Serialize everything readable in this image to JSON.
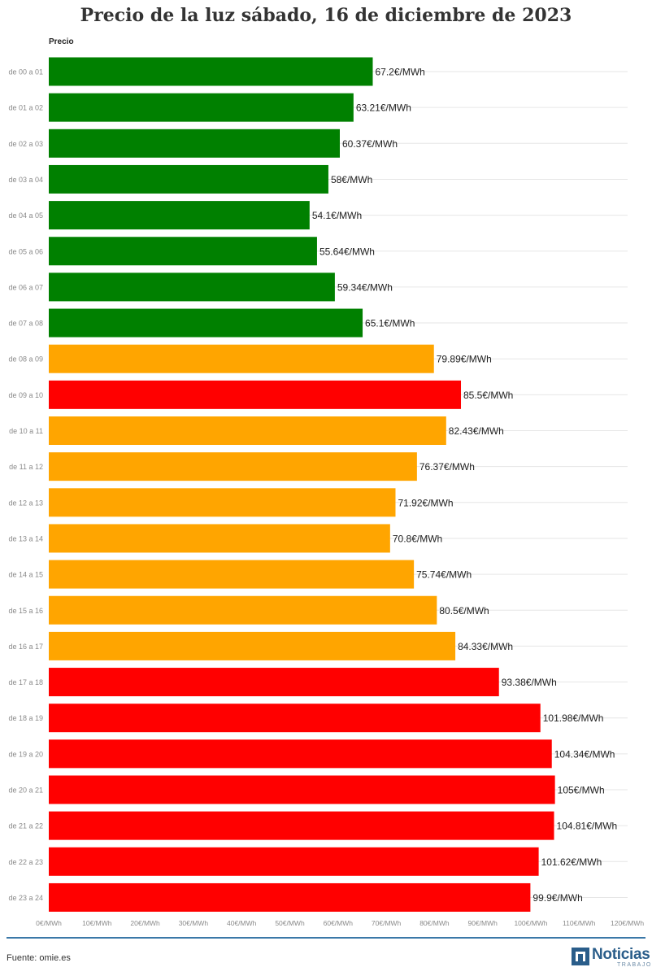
{
  "title": "Precio de la luz sábado, 16 de diciembre de 2023",
  "footer": {
    "source": "Fuente: omie.es",
    "logo_text": "Noticias",
    "logo_subtext": "TRABAJO"
  },
  "colors": {
    "cheap": "#008000",
    "mid": "#ffa500",
    "expensive": "#ff0000"
  },
  "chart_data": {
    "type": "bar",
    "orientation": "horizontal",
    "series_label": "Precio",
    "xlim": [
      0,
      120
    ],
    "x_ticks": [
      "0€/MWh",
      "10€/MWh",
      "20€/MWh",
      "30€/MWh",
      "40€/MWh",
      "50€/MWh",
      "60€/MWh",
      "70€/MWh",
      "80€/MWh",
      "90€/MWh",
      "100€/MWh",
      "110€/MWh",
      "120€/MWh"
    ],
    "categories": [
      "de 00 a 01",
      "de 01 a 02",
      "de 02 a 03",
      "de 03 a 04",
      "de 04 a 05",
      "de 05 a 06",
      "de 06 a 07",
      "de 07 a 08",
      "de 08 a 09",
      "de 09 a 10",
      "de 10 a 11",
      "de 11 a 12",
      "de 12 a 13",
      "de 13 a 14",
      "de 14 a 15",
      "de 15 a 16",
      "de 16 a 17",
      "de 17 a 18",
      "de 18 a 19",
      "de 19 a 20",
      "de 20 a 21",
      "de 21 a 22",
      "de 22 a 23",
      "de 23 a 24"
    ],
    "values": [
      67.2,
      63.21,
      60.37,
      58,
      54.1,
      55.64,
      59.34,
      65.1,
      79.89,
      85.5,
      82.43,
      76.37,
      71.92,
      70.8,
      75.74,
      80.5,
      84.33,
      93.38,
      101.98,
      104.34,
      105,
      104.81,
      101.62,
      99.9
    ],
    "value_labels": [
      "67.2€/MWh",
      "63.21€/MWh",
      "60.37€/MWh",
      "58€/MWh",
      "54.1€/MWh",
      "55.64€/MWh",
      "59.34€/MWh",
      "65.1€/MWh",
      "79.89€/MWh",
      "85.5€/MWh",
      "82.43€/MWh",
      "76.37€/MWh",
      "71.92€/MWh",
      "70.8€/MWh",
      "75.74€/MWh",
      "80.5€/MWh",
      "84.33€/MWh",
      "93.38€/MWh",
      "101.98€/MWh",
      "104.34€/MWh",
      "105€/MWh",
      "104.81€/MWh",
      "101.62€/MWh",
      "99.9€/MWh"
    ],
    "bar_colors": [
      "#008000",
      "#008000",
      "#008000",
      "#008000",
      "#008000",
      "#008000",
      "#008000",
      "#008000",
      "#ffa500",
      "#ff0000",
      "#ffa500",
      "#ffa500",
      "#ffa500",
      "#ffa500",
      "#ffa500",
      "#ffa500",
      "#ffa500",
      "#ff0000",
      "#ff0000",
      "#ff0000",
      "#ff0000",
      "#ff0000",
      "#ff0000",
      "#ff0000"
    ],
    "grid": true,
    "legend": "none"
  }
}
